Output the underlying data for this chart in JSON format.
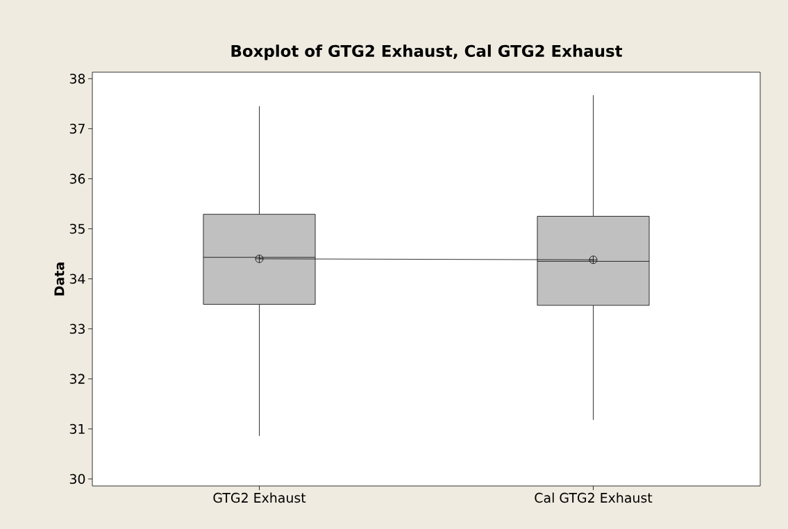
{
  "chart_data": {
    "type": "box",
    "title": "Boxplot of GTG2 Exhaust, Cal GTG2 Exhaust",
    "ylabel": "Data",
    "categories": [
      "GTG2 Exhaust",
      "Cal GTG2 Exhaust"
    ],
    "ylim": [
      29.86,
      38.13
    ],
    "yticks": [
      30,
      31,
      32,
      33,
      34,
      35,
      36,
      37,
      38
    ],
    "grid": false,
    "color": "#c0c0c0",
    "boxes": [
      {
        "low": 30.86,
        "q1": 33.49,
        "median": 34.43,
        "q3": 35.29,
        "high": 37.45,
        "mean": 34.4
      },
      {
        "low": 31.18,
        "q1": 33.47,
        "median": 34.35,
        "q3": 35.25,
        "high": 37.67,
        "mean": 34.38
      }
    ],
    "series": [
      {
        "type": "line",
        "color": "#000000",
        "values": [
          34.4,
          34.38
        ],
        "line_style": "solid"
      }
    ]
  }
}
